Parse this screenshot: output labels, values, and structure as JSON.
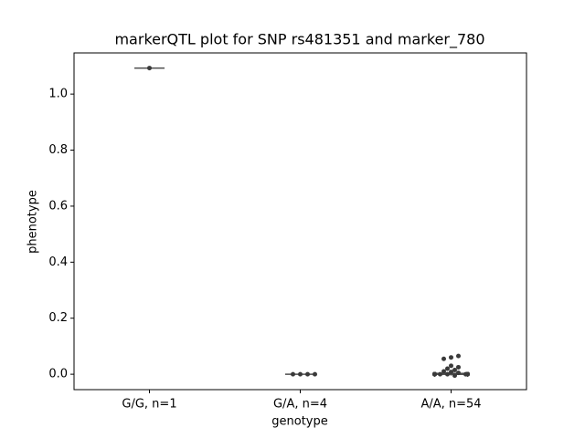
{
  "chart_data": {
    "type": "box",
    "title": "markerQTL plot for SNP rs481351 and marker_780",
    "x_label": "genotype",
    "y_label": "phenotype",
    "categories": [
      "G/G, n=1",
      "G/A, n=4",
      "A/A, n=54"
    ],
    "ylim": [
      -0.055,
      1.147
    ],
    "yticks": [
      {
        "value": 0,
        "label": "0.0"
      },
      0.2,
      0.4,
      0.6,
      0.8,
      {
        "value": 1,
        "label": "1.0"
      }
    ],
    "box_color": "#4d4d4d",
    "point_color": "#3a3a3a",
    "boxes": [
      {
        "whislo": 1.093,
        "q1": 1.093,
        "median": 1.093,
        "q3": 1.093,
        "whishi": 1.093
      },
      {
        "whislo": 0,
        "q1": 0,
        "median": 0,
        "q3": 0,
        "whishi": 0
      },
      {
        "whislo": -0.005,
        "q1": 0,
        "median": 0,
        "q3": 0.003,
        "whishi": 0.008
      }
    ],
    "points": [
      [
        1.093
      ],
      [
        0,
        0,
        0,
        0
      ],
      [
        0.06,
        0.065,
        0.055,
        0.03,
        0.025,
        0.02,
        0.015,
        0.01,
        0.008,
        0.005,
        -0.005,
        0,
        0,
        0,
        0,
        0,
        0,
        0,
        0,
        0,
        0,
        0,
        0,
        0,
        0,
        0,
        0,
        0,
        0,
        0,
        0,
        0,
        0,
        0,
        0,
        0,
        0,
        0,
        0,
        0,
        0,
        0,
        0,
        0,
        0,
        0,
        0,
        0,
        0,
        0,
        0,
        0,
        0,
        0
      ]
    ]
  }
}
